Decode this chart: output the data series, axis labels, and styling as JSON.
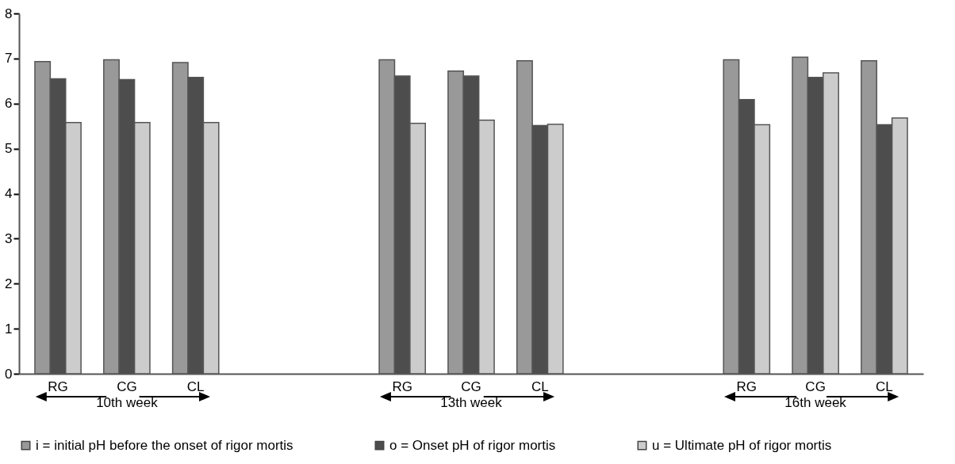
{
  "chart_data": {
    "type": "bar",
    "categories": [
      "RG",
      "CG",
      "CL",
      null,
      null,
      "RG",
      "CG",
      "CL",
      null,
      null,
      "RG",
      "CG",
      "CL"
    ],
    "series": [
      {
        "name": "i = initial pH before the onset of rigor mortis",
        "color": "#999999",
        "values": [
          6.93,
          6.97,
          6.91,
          null,
          null,
          6.97,
          6.72,
          6.95,
          null,
          null,
          6.97,
          7.03,
          6.95
        ]
      },
      {
        "name": "o = Onset pH of rigor mortis",
        "color": "#4d4d4d",
        "values": [
          6.55,
          6.53,
          6.58,
          null,
          null,
          6.61,
          6.61,
          5.51,
          null,
          null,
          6.09,
          6.58,
          5.53
        ]
      },
      {
        "name": "u = Ultimate pH of rigor mortis",
        "color": "#cccccc",
        "values": [
          5.58,
          5.58,
          5.58,
          null,
          null,
          5.56,
          5.63,
          5.54,
          null,
          null,
          5.53,
          6.68,
          5.68
        ]
      }
    ],
    "ylim": [
      0,
      8
    ],
    "yticks": [
      0,
      1,
      2,
      3,
      4,
      5,
      6,
      7,
      8
    ],
    "annotations": [
      "10th week",
      "13th week",
      "16th week"
    ],
    "grid": false,
    "legend": "bottom"
  }
}
